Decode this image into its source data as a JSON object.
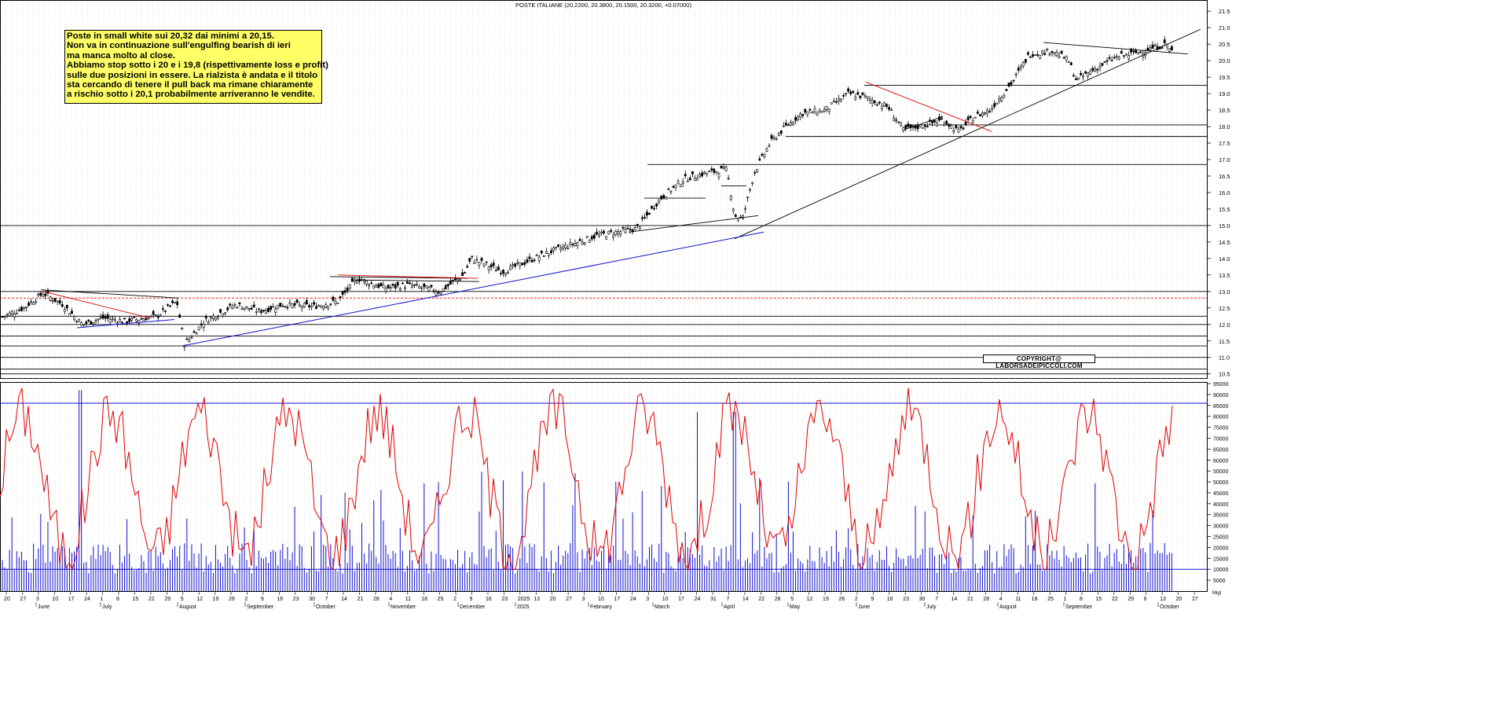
{
  "chart_data": {
    "type": "candlestick-with-indicator",
    "title": "POSTE ITALIANE (20.2200, 20.3800, 20.1500, 20.3200, +0.07000)",
    "annotation": {
      "lines": [
        "Poste in small white sui 20,32 dai minimi a 20,15.",
        "Non va in continuazione sull'engulfing bearish di ieri",
        "ma manca molto al close.",
        "Abbiamo stop sotto i 20 e i 19,8 (rispettivamente loss e profit)",
        "sulle due posizioni in essere. La rialzista è andata e il titolo",
        "sta cercando di tenere il pull back ma rimane chiaramente",
        "a rischio sotto i 20,1 probabilmente arriveranno le vendite."
      ]
    },
    "copyright": "COPYRIGHT@ LABORSADEIPICCOLI.COM",
    "price_axis": {
      "ylim": [
        10.35,
        21.6
      ],
      "ticks": [
        "21.5",
        "21.0",
        "20.5",
        "20.0",
        "19.5",
        "19.0",
        "18.5",
        "18.0",
        "17.5",
        "17.0",
        "16.5",
        "16.0",
        "15.5",
        "15.0",
        "14.5",
        "14.0",
        "13.5",
        "13.0",
        "12.5",
        "12.0",
        "11.5",
        "11.0",
        "10.5"
      ]
    },
    "volume_axis": {
      "ylim": [
        0,
        95000
      ],
      "ticks": [
        "95000",
        "90000",
        "85000",
        "80000",
        "75000",
        "70000",
        "65000",
        "60000",
        "55000",
        "50000",
        "45000",
        "40000",
        "35000",
        "30000",
        "25000",
        "20000",
        "15000",
        "10000",
        "5000"
      ],
      "unit_label": "Migl"
    },
    "date_axis": {
      "day_ticks": [
        "20",
        "27",
        "3",
        "10",
        "17",
        "24",
        "1",
        "8",
        "15",
        "22",
        "29",
        "5",
        "12",
        "19",
        "26",
        "2",
        "9",
        "16",
        "23",
        "30",
        "7",
        "14",
        "21",
        "28",
        "4",
        "11",
        "18",
        "25",
        "2",
        "9",
        "16",
        "23",
        "2025",
        "13",
        "20",
        "27",
        "3",
        "10",
        "17",
        "24",
        "3",
        "10",
        "17",
        "24",
        "31",
        "7",
        "14",
        "22",
        "28",
        "5",
        "12",
        "19",
        "26",
        "2",
        "9",
        "16",
        "23",
        "30",
        "7",
        "14",
        "21",
        "28",
        "4",
        "11",
        "18",
        "25",
        "1",
        "8",
        "15",
        "22",
        "29",
        "6",
        "13",
        "20",
        "27"
      ],
      "months": [
        "June",
        "July",
        "August",
        "September",
        "October",
        "November",
        "December",
        "2025",
        "February",
        "March",
        "April",
        "May",
        "June",
        "July",
        "August",
        "September",
        "October"
      ]
    },
    "horizontal_levels": [
      15.0,
      13.0,
      12.25,
      12.0,
      11.65,
      11.35,
      11.0,
      10.65,
      10.5,
      17.7,
      18.05,
      19.25,
      16.85
    ],
    "dashed_level": 12.8,
    "red_indicator_overbought": 86000,
    "red_indicator_oversold": 10000,
    "series": [
      {
        "name": "candles",
        "kind": "ohlc",
        "description_points": [
          [
            0,
            12.2
          ],
          [
            30,
            12.5
          ],
          [
            55,
            12.95
          ],
          [
            80,
            12.6
          ],
          [
            105,
            12.0
          ],
          [
            130,
            12.2
          ],
          [
            160,
            12.1
          ],
          [
            200,
            12.25
          ],
          [
            225,
            12.7
          ],
          [
            235,
            11.4
          ],
          [
            260,
            12.1
          ],
          [
            300,
            12.6
          ],
          [
            330,
            12.4
          ],
          [
            360,
            12.6
          ],
          [
            400,
            12.55
          ],
          [
            430,
            12.7
          ],
          [
            455,
            13.4
          ],
          [
            490,
            13.1
          ],
          [
            520,
            13.2
          ],
          [
            560,
            13.0
          ],
          [
            590,
            13.5
          ],
          [
            600,
            14.0
          ],
          [
            640,
            13.6
          ],
          [
            700,
            14.2
          ],
          [
            760,
            14.7
          ],
          [
            810,
            14.9
          ],
          [
            840,
            15.8
          ],
          [
            870,
            16.4
          ],
          [
            900,
            16.6
          ],
          [
            925,
            16.7
          ],
          [
            935,
            15.3
          ],
          [
            945,
            15.2
          ],
          [
            960,
            16.6
          ],
          [
            980,
            17.5
          ],
          [
            1000,
            18.0
          ],
          [
            1020,
            18.4
          ],
          [
            1050,
            18.5
          ],
          [
            1080,
            19.0
          ],
          [
            1100,
            18.9
          ],
          [
            1130,
            18.6
          ],
          [
            1150,
            17.9
          ],
          [
            1170,
            18.0
          ],
          [
            1200,
            18.2
          ],
          [
            1220,
            17.85
          ],
          [
            1240,
            18.3
          ],
          [
            1260,
            18.5
          ],
          [
            1290,
            19.4
          ],
          [
            1310,
            20.2
          ],
          [
            1340,
            20.3
          ],
          [
            1360,
            20.0
          ],
          [
            1370,
            19.4
          ],
          [
            1390,
            19.7
          ],
          [
            1420,
            20.1
          ],
          [
            1440,
            20.2
          ],
          [
            1470,
            20.4
          ],
          [
            1485,
            20.5
          ],
          [
            1490,
            20.3
          ]
        ]
      },
      {
        "name": "volume",
        "kind": "bars"
      },
      {
        "name": "oscillator",
        "kind": "line"
      }
    ]
  }
}
